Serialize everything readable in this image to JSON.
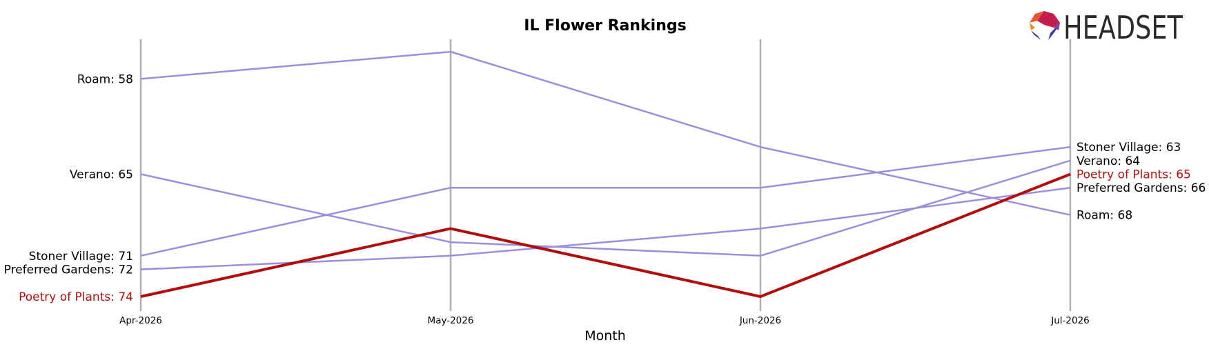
{
  "chart_data": {
    "type": "line",
    "title": "IL Flower Rankings",
    "xlabel": "Month",
    "ylabel": "",
    "x": [
      "Apr-2026",
      "May-2026",
      "Jun-2026",
      "Jul-2026"
    ],
    "y_inverted": true,
    "ylim": [
      56,
      74
    ],
    "grid": false,
    "highlight_series": "Poetry of Plants",
    "series": [
      {
        "name": "Roam",
        "values": [
          58,
          56,
          63,
          68
        ],
        "color": "#9b8fdc"
      },
      {
        "name": "Verano",
        "values": [
          65,
          70,
          71,
          64
        ],
        "color": "#9b8fdc"
      },
      {
        "name": "Stoner Village",
        "values": [
          71,
          66,
          66,
          63
        ],
        "color": "#9b8fdc"
      },
      {
        "name": "Preferred Gardens",
        "values": [
          72,
          71,
          69,
          66
        ],
        "color": "#9b8fdc"
      },
      {
        "name": "Poetry of Plants",
        "values": [
          74,
          69,
          74,
          65
        ],
        "color": "#b30c0c"
      }
    ],
    "left_labels": [
      {
        "text": "Roam: 58",
        "rank": 58,
        "color": "#000000"
      },
      {
        "text": "Verano: 65",
        "rank": 65,
        "color": "#000000"
      },
      {
        "text": "Stoner Village: 71",
        "rank": 71,
        "color": "#000000"
      },
      {
        "text": "Preferred Gardens: 72",
        "rank": 72,
        "color": "#000000"
      },
      {
        "text": "Poetry of Plants: 74",
        "rank": 74,
        "color": "#b30c0c"
      }
    ],
    "right_labels": [
      {
        "text": "Stoner Village: 63",
        "rank": 63,
        "color": "#000000"
      },
      {
        "text": "Verano: 64",
        "rank": 64,
        "color": "#000000"
      },
      {
        "text": "Poetry of Plants: 65",
        "rank": 65,
        "color": "#b30c0c"
      },
      {
        "text": "Preferred Gardens: 66",
        "rank": 66,
        "color": "#000000"
      },
      {
        "text": "Roam: 68",
        "rank": 68,
        "color": "#000000"
      }
    ]
  },
  "logo": {
    "text": "HEADSET",
    "icon": "headset-logo-icon"
  }
}
